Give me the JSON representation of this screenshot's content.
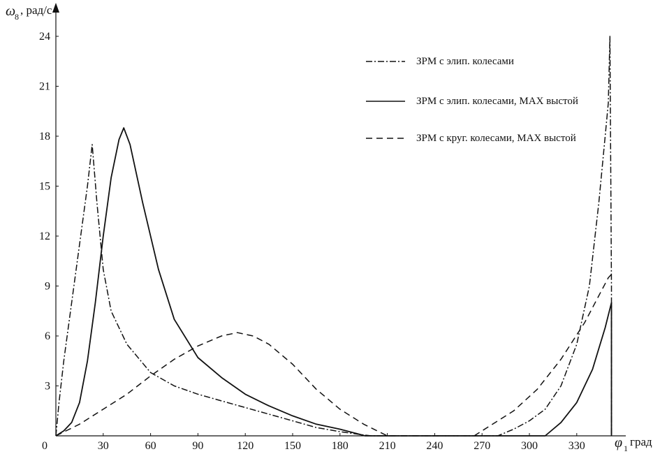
{
  "chart_data": {
    "type": "line",
    "ylabel": {
      "symbol": "ω",
      "subscript": "8",
      "unit": ", рад/с"
    },
    "xlabel": {
      "symbol": "φ",
      "subscript": "1",
      "unit": "град"
    },
    "xlim": [
      0,
      360
    ],
    "ylim": [
      0,
      25
    ],
    "x_ticks": [
      0,
      30,
      60,
      90,
      120,
      150,
      180,
      210,
      240,
      270,
      300,
      330
    ],
    "y_ticks": [
      3,
      6,
      9,
      12,
      15,
      18,
      21,
      24
    ],
    "grid": false,
    "legend_position": "top-right",
    "series": [
      {
        "name": "ЗРМ с элип. колесами",
        "style": "dashdot",
        "points": [
          [
            0,
            0
          ],
          [
            2,
            2
          ],
          [
            5,
            4.5
          ],
          [
            10,
            8
          ],
          [
            15,
            11.5
          ],
          [
            20,
            15
          ],
          [
            23,
            17.5
          ],
          [
            26,
            14
          ],
          [
            30,
            10
          ],
          [
            35,
            7.5
          ],
          [
            45,
            5.5
          ],
          [
            60,
            3.8
          ],
          [
            75,
            3
          ],
          [
            90,
            2.5
          ],
          [
            105,
            2.1
          ],
          [
            120,
            1.7
          ],
          [
            135,
            1.3
          ],
          [
            150,
            0.9
          ],
          [
            165,
            0.5
          ],
          [
            180,
            0.25
          ],
          [
            195,
            0.05
          ],
          [
            200,
            0
          ],
          [
            280,
            0
          ],
          [
            290,
            0.4
          ],
          [
            300,
            0.9
          ],
          [
            310,
            1.6
          ],
          [
            320,
            3
          ],
          [
            330,
            5.5
          ],
          [
            338,
            9
          ],
          [
            344,
            14
          ],
          [
            348,
            18
          ],
          [
            350,
            20
          ],
          [
            351,
            24
          ],
          [
            352,
            9
          ],
          [
            352,
            0
          ]
        ]
      },
      {
        "name": "ЗРМ с элип. колесами, MAX выстой",
        "style": "solid",
        "points": [
          [
            0,
            0
          ],
          [
            5,
            0.3
          ],
          [
            10,
            0.8
          ],
          [
            15,
            2
          ],
          [
            20,
            4.5
          ],
          [
            25,
            8
          ],
          [
            30,
            12
          ],
          [
            35,
            15.5
          ],
          [
            40,
            17.8
          ],
          [
            43,
            18.5
          ],
          [
            47,
            17.5
          ],
          [
            55,
            14
          ],
          [
            65,
            10
          ],
          [
            75,
            7
          ],
          [
            90,
            4.7
          ],
          [
            105,
            3.5
          ],
          [
            120,
            2.5
          ],
          [
            135,
            1.8
          ],
          [
            150,
            1.2
          ],
          [
            165,
            0.7
          ],
          [
            180,
            0.4
          ],
          [
            190,
            0.15
          ],
          [
            196,
            0
          ],
          [
            310,
            0
          ],
          [
            320,
            0.8
          ],
          [
            330,
            2
          ],
          [
            340,
            4
          ],
          [
            348,
            6.5
          ],
          [
            352,
            8
          ],
          [
            352,
            0
          ]
        ]
      },
      {
        "name": "ЗРМ с круг. колесами, MAX выстой",
        "style": "dashed",
        "points": [
          [
            0,
            0
          ],
          [
            15,
            0.7
          ],
          [
            30,
            1.6
          ],
          [
            45,
            2.5
          ],
          [
            60,
            3.6
          ],
          [
            75,
            4.6
          ],
          [
            90,
            5.4
          ],
          [
            105,
            6
          ],
          [
            115,
            6.2
          ],
          [
            125,
            6
          ],
          [
            135,
            5.5
          ],
          [
            150,
            4.3
          ],
          [
            165,
            2.8
          ],
          [
            180,
            1.6
          ],
          [
            195,
            0.7
          ],
          [
            210,
            0
          ],
          [
            265,
            0
          ],
          [
            275,
            0.6
          ],
          [
            290,
            1.5
          ],
          [
            305,
            2.8
          ],
          [
            320,
            4.6
          ],
          [
            335,
            6.8
          ],
          [
            350,
            9.5
          ],
          [
            352,
            9.7
          ]
        ]
      }
    ]
  }
}
